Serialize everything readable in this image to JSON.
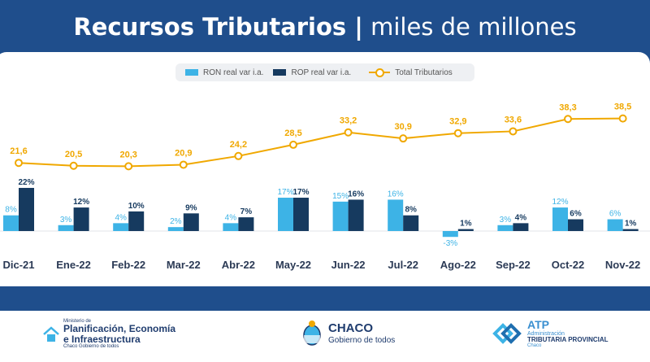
{
  "header": {
    "title_bold": "Recursos Tributarios |",
    "title_light": "miles de millones"
  },
  "colors": {
    "ron": "#3db3e6",
    "rop": "#163a5f",
    "total": "#f0a800",
    "header": "#1f4e8c"
  },
  "chart_data": {
    "type": "bar",
    "categories": [
      "Dic-21",
      "Ene-22",
      "Feb-22",
      "Mar-22",
      "Abr-22",
      "May-22",
      "Jun-22",
      "Jul-22",
      "Ago-22",
      "Sep-22",
      "Oct-22",
      "Nov-22"
    ],
    "series": [
      {
        "name": "RON real var i.a.",
        "type": "bar",
        "values": [
          8,
          3,
          4,
          2,
          4,
          17,
          15,
          16,
          -3,
          3,
          12,
          6
        ],
        "labels": [
          "8%",
          "3%",
          "4%",
          "2%",
          "4%",
          "17%",
          "15%",
          "16%",
          "-3%",
          "3%",
          "12%",
          "6%"
        ]
      },
      {
        "name": "ROP real var i.a.",
        "type": "bar",
        "values": [
          22,
          12,
          10,
          9,
          7,
          17,
          16,
          8,
          1,
          4,
          6,
          1
        ],
        "labels": [
          "22%",
          "12%",
          "10%",
          "9%",
          "7%",
          "17%",
          "16%",
          "8%",
          "1%",
          "4%",
          "6%",
          "1%"
        ]
      },
      {
        "name": "Total Tributarios",
        "type": "line",
        "values": [
          21.6,
          20.5,
          20.3,
          20.9,
          24.2,
          28.5,
          33.2,
          30.9,
          32.9,
          33.6,
          38.3,
          38.5
        ],
        "labels": [
          "21,6",
          "20,5",
          "20,3",
          "20,9",
          "24,2",
          "28,5",
          "33,2",
          "30,9",
          "32,9",
          "33,6",
          "38,3",
          "38,5"
        ]
      }
    ],
    "legend_position": "top-center",
    "grid": false
  },
  "footer": {
    "logo1": {
      "small": "Ministerio de",
      "line1": "Planificación, Economía",
      "line2": "e Infraestructura",
      "sub": "Chaco Gobierno de todos"
    },
    "logo2": {
      "big": "CHACO",
      "sub": "Gobierno de todos"
    },
    "logo3": {
      "big": "ATP",
      "small": "Administración",
      "mid": "TRIBUTARIA PROVINCIAL",
      "sub": "Chaco"
    }
  },
  "icons": {
    "logo1": "house-icon",
    "logo2": "coat-of-arms-icon",
    "logo3": "atp-diamond-icon"
  }
}
